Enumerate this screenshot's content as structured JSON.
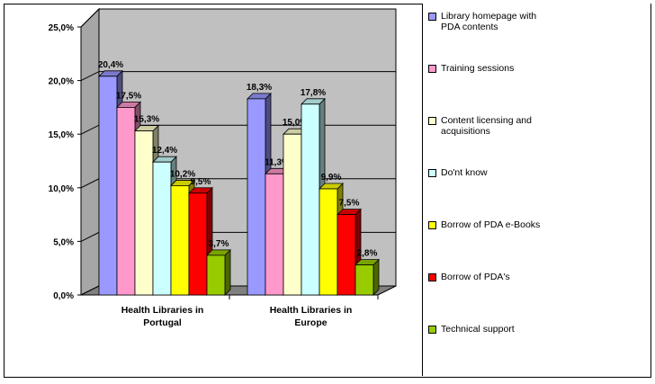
{
  "chart_data": {
    "type": "bar",
    "title": "",
    "xlabel": "",
    "ylabel": "",
    "ylim": [
      0,
      25
    ],
    "y_ticks": [
      "0,0%",
      "5,0%",
      "10,0%",
      "15,0%",
      "20,0%",
      "25,0%"
    ],
    "grid": true,
    "legend_position": "right",
    "categories": [
      [
        "Health Libraries in",
        "Portugal"
      ],
      [
        "Health Libraries in",
        "Europe"
      ]
    ],
    "series": [
      {
        "name": "Library homepage with PDA contents",
        "legend_lines": [
          "Library homepage with",
          "PDA contents"
        ],
        "color": "#9999ff",
        "values": [
          20.4,
          18.3
        ],
        "labels": [
          "20,4%",
          "18,3%"
        ]
      },
      {
        "name": "Training sessions",
        "legend_lines": [
          "Training sessions"
        ],
        "color": "#ff99cc",
        "values": [
          17.5,
          11.3
        ],
        "labels": [
          "17,5%",
          "11,3%"
        ]
      },
      {
        "name": "Content licensing and acquisitions",
        "legend_lines": [
          "Content licensing and",
          "acquisitions"
        ],
        "color": "#ffffcc",
        "values": [
          15.3,
          15.0
        ],
        "labels": [
          "15,3%",
          "15,0%"
        ]
      },
      {
        "name": "Do'nt know",
        "legend_lines": [
          "Do'nt know"
        ],
        "color": "#ccffff",
        "values": [
          12.4,
          17.8
        ],
        "labels": [
          "12,4%",
          "17,8%"
        ]
      },
      {
        "name": "Borrow of PDA e-Books",
        "legend_lines": [
          "Borrow of PDA e-Books"
        ],
        "color": "#ffff00",
        "values": [
          10.2,
          9.9
        ],
        "labels": [
          "10,2%",
          "9,9%"
        ]
      },
      {
        "name": "Borrow of PDA's",
        "legend_lines": [
          "Borrow of PDA's"
        ],
        "color": "#ff0000",
        "values": [
          9.5,
          7.5
        ],
        "labels": [
          "9,5%",
          "7,5%"
        ]
      },
      {
        "name": "Technical support",
        "legend_lines": [
          "Technical support"
        ],
        "color": "#99cc00",
        "values": [
          3.7,
          2.8
        ],
        "labels": [
          "3,7%",
          "2,8%"
        ]
      }
    ]
  }
}
